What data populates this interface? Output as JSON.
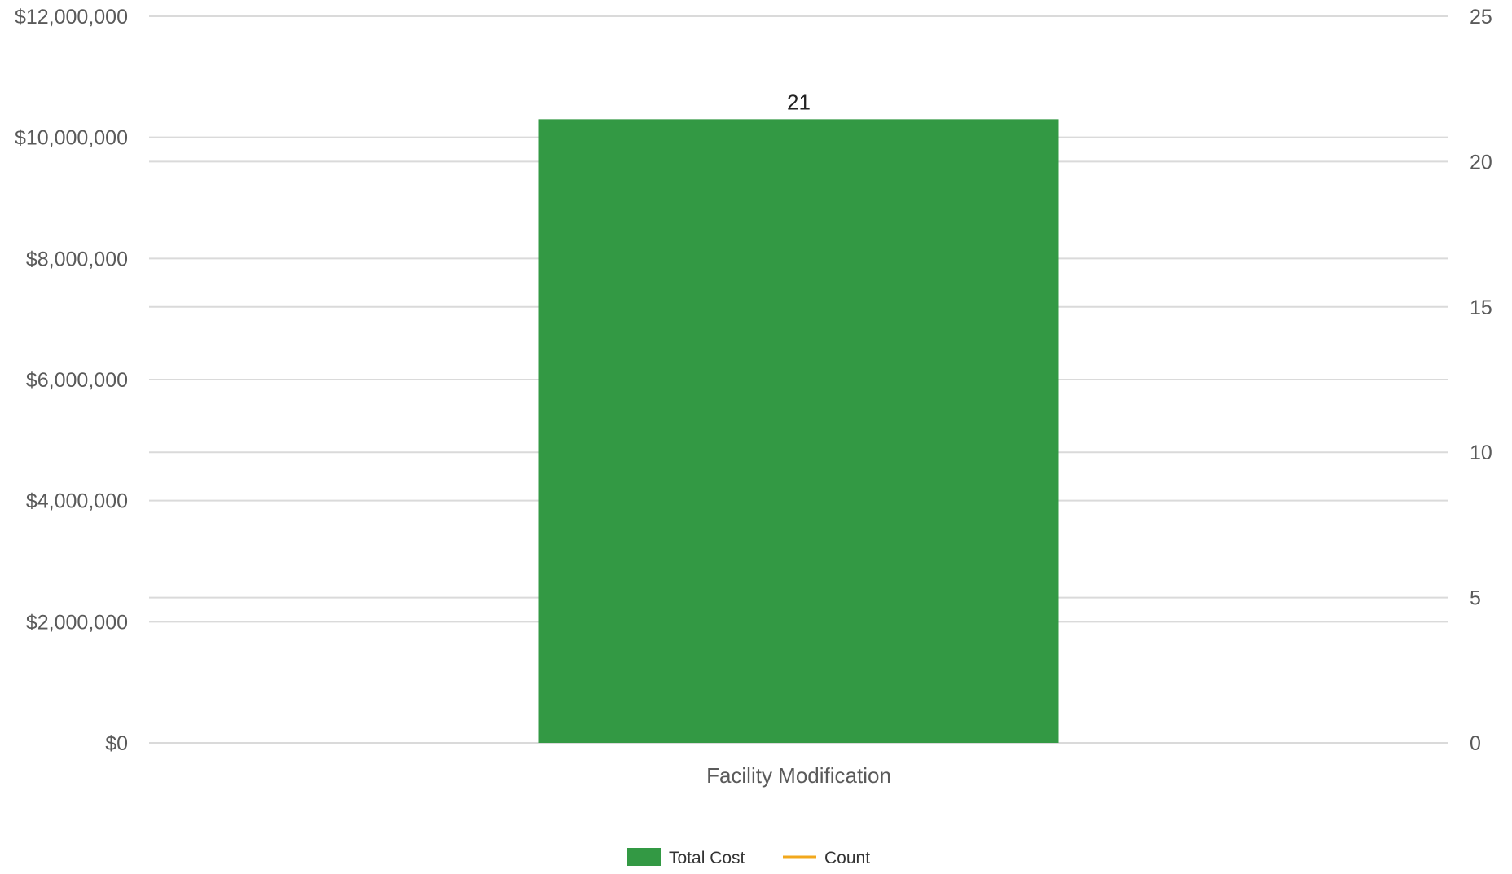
{
  "chart_data": {
    "type": "bar",
    "categories": [
      "Facility Modification"
    ],
    "series": [
      {
        "name": "Total Cost",
        "axis": "left",
        "kind": "bar",
        "values": [
          10300000
        ],
        "color": "#339944"
      },
      {
        "name": "Count",
        "axis": "right",
        "kind": "line",
        "values": [
          21
        ],
        "color": "#f2a81d"
      }
    ],
    "data_labels": [
      "21"
    ],
    "left_axis": {
      "ylim": [
        0,
        12000000
      ],
      "ticks": [
        0,
        2000000,
        4000000,
        6000000,
        8000000,
        10000000,
        12000000
      ],
      "tick_labels": [
        "$0",
        "$2,000,000",
        "$4,000,000",
        "$6,000,000",
        "$8,000,000",
        "$10,000,000",
        "$12,000,000"
      ]
    },
    "right_axis": {
      "ylim": [
        0,
        25
      ],
      "ticks": [
        0,
        5,
        10,
        15,
        20,
        25
      ],
      "tick_labels": [
        "0",
        "5",
        "10",
        "15",
        "20",
        "25"
      ]
    },
    "grid": true,
    "legend_position": "bottom-center",
    "title": "",
    "xlabel": "",
    "ylabel": ""
  },
  "legend": {
    "items": [
      {
        "label": "Total Cost",
        "color": "#339944",
        "symbol": "box"
      },
      {
        "label": "Count",
        "color": "#f2a81d",
        "symbol": "line"
      }
    ]
  }
}
